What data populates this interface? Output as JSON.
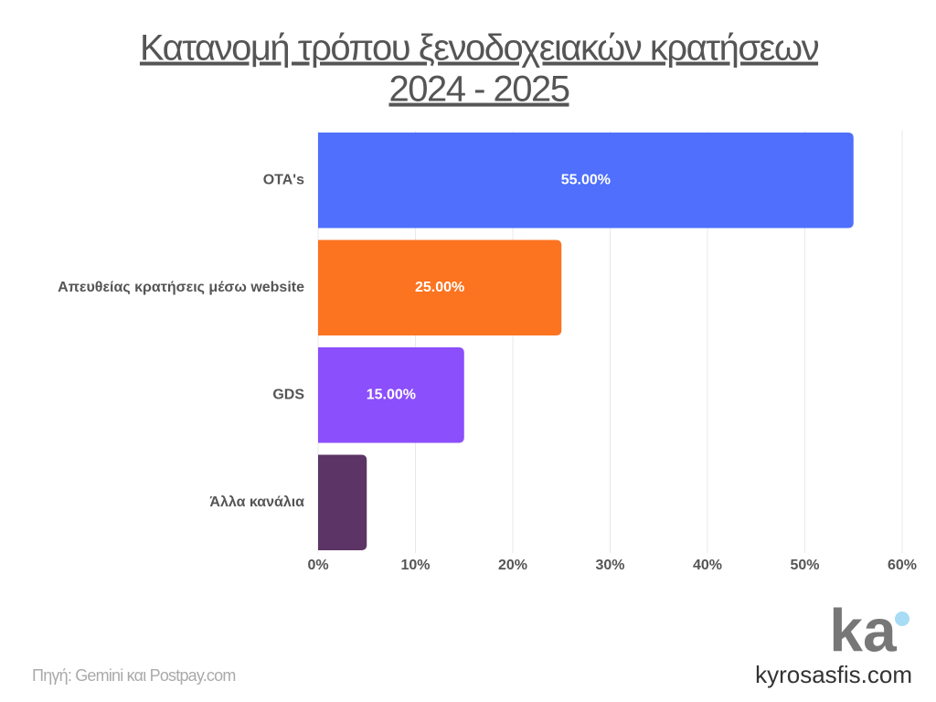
{
  "chart_data": {
    "type": "hbar",
    "title": [
      "Κατανομή τρόπου ξενοδοχειακών κρατήσεων",
      "2024 - 2025"
    ],
    "categories": [
      "OTA's",
      "Απευθείας κρατήσεις μέσω website",
      "GDS",
      "Άλλα κανάλια"
    ],
    "values": [
      55,
      25,
      15,
      5
    ],
    "value_labels": [
      "55.00%",
      "25.00%",
      "15.00%",
      null
    ],
    "colors": [
      "#4f6ffc",
      "#fc7320",
      "#8b4ffc",
      "#5c3566"
    ],
    "xlim": [
      0,
      60
    ],
    "xticks": [
      {
        "value": 0,
        "label": "0%"
      },
      {
        "value": 10,
        "label": "10%"
      },
      {
        "value": 20,
        "label": "20%"
      },
      {
        "value": 30,
        "label": "30%"
      },
      {
        "value": 40,
        "label": "40%"
      },
      {
        "value": 50,
        "label": "50%"
      },
      {
        "value": 60,
        "label": "60%"
      }
    ],
    "grid": true,
    "source": "Πηγή: Gemini και Postpay.com",
    "logo": "ka",
    "website": "kyrosasfis.com"
  }
}
